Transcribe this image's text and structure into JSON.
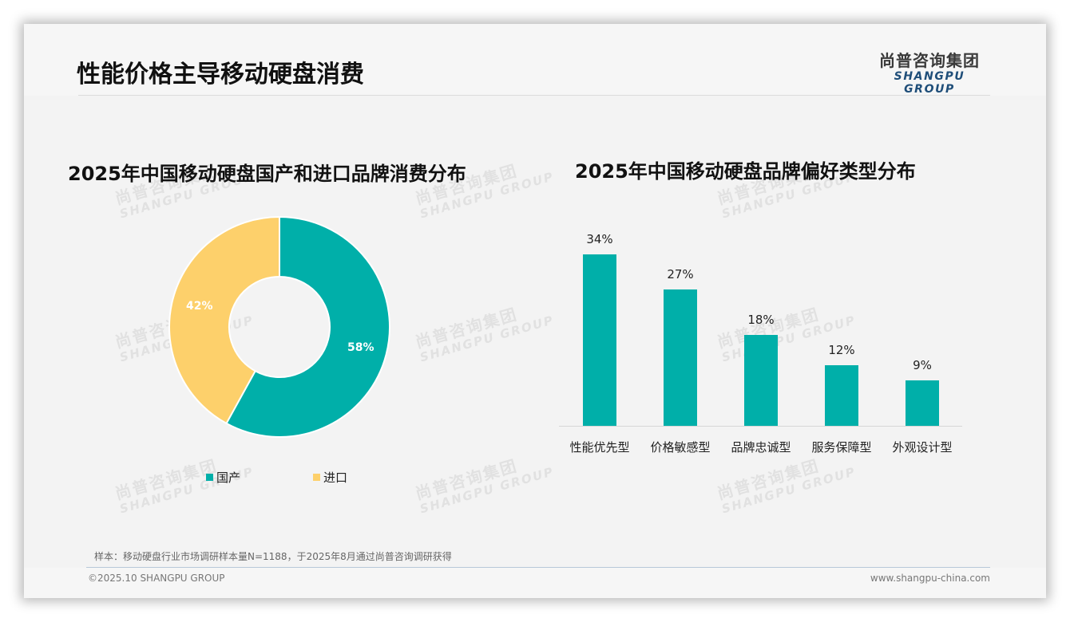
{
  "header": {
    "title": "性能价格主导移动硬盘消费",
    "logo": {
      "cn": "尚普咨询集团",
      "en": "SHANGPU GROUP"
    }
  },
  "watermark": {
    "cn": "尚普咨询集团",
    "en": "SHANGPU GROUP"
  },
  "colors": {
    "teal": "#00afa9",
    "yellow": "#fdd06b",
    "logo_blue": "#1f4e79"
  },
  "chart_data": [
    {
      "type": "pie",
      "variant": "donut",
      "title": "2025年中国移动硬盘国产和进口品牌消费分布",
      "categories": [
        "国产",
        "进口"
      ],
      "values": [
        58,
        42
      ],
      "labels": [
        "58%",
        "42%"
      ],
      "colors": [
        "#00afa9",
        "#fdd06b"
      ],
      "legend_position": "bottom"
    },
    {
      "type": "bar",
      "title": "2025年中国移动硬盘品牌偏好类型分布",
      "categories": [
        "性能优先型",
        "价格敏感型",
        "品牌忠诚型",
        "服务保障型",
        "外观设计型"
      ],
      "values": [
        34,
        27,
        18,
        12,
        9
      ],
      "labels": [
        "34%",
        "27%",
        "18%",
        "12%",
        "9%"
      ],
      "xlabel": "",
      "ylabel": "",
      "ylim": [
        0,
        35
      ],
      "grid": false,
      "color": "#00afa9"
    }
  ],
  "legend": {
    "items": [
      {
        "label": "国产"
      },
      {
        "label": "进口"
      }
    ]
  },
  "footer": {
    "note": "样本：移动硬盘行业市场调研样本量N=1188，于2025年8月通过尚普咨询调研获得",
    "copyright": "©2025.10 SHANGPU GROUP",
    "website": "www.shangpu-china.com"
  }
}
